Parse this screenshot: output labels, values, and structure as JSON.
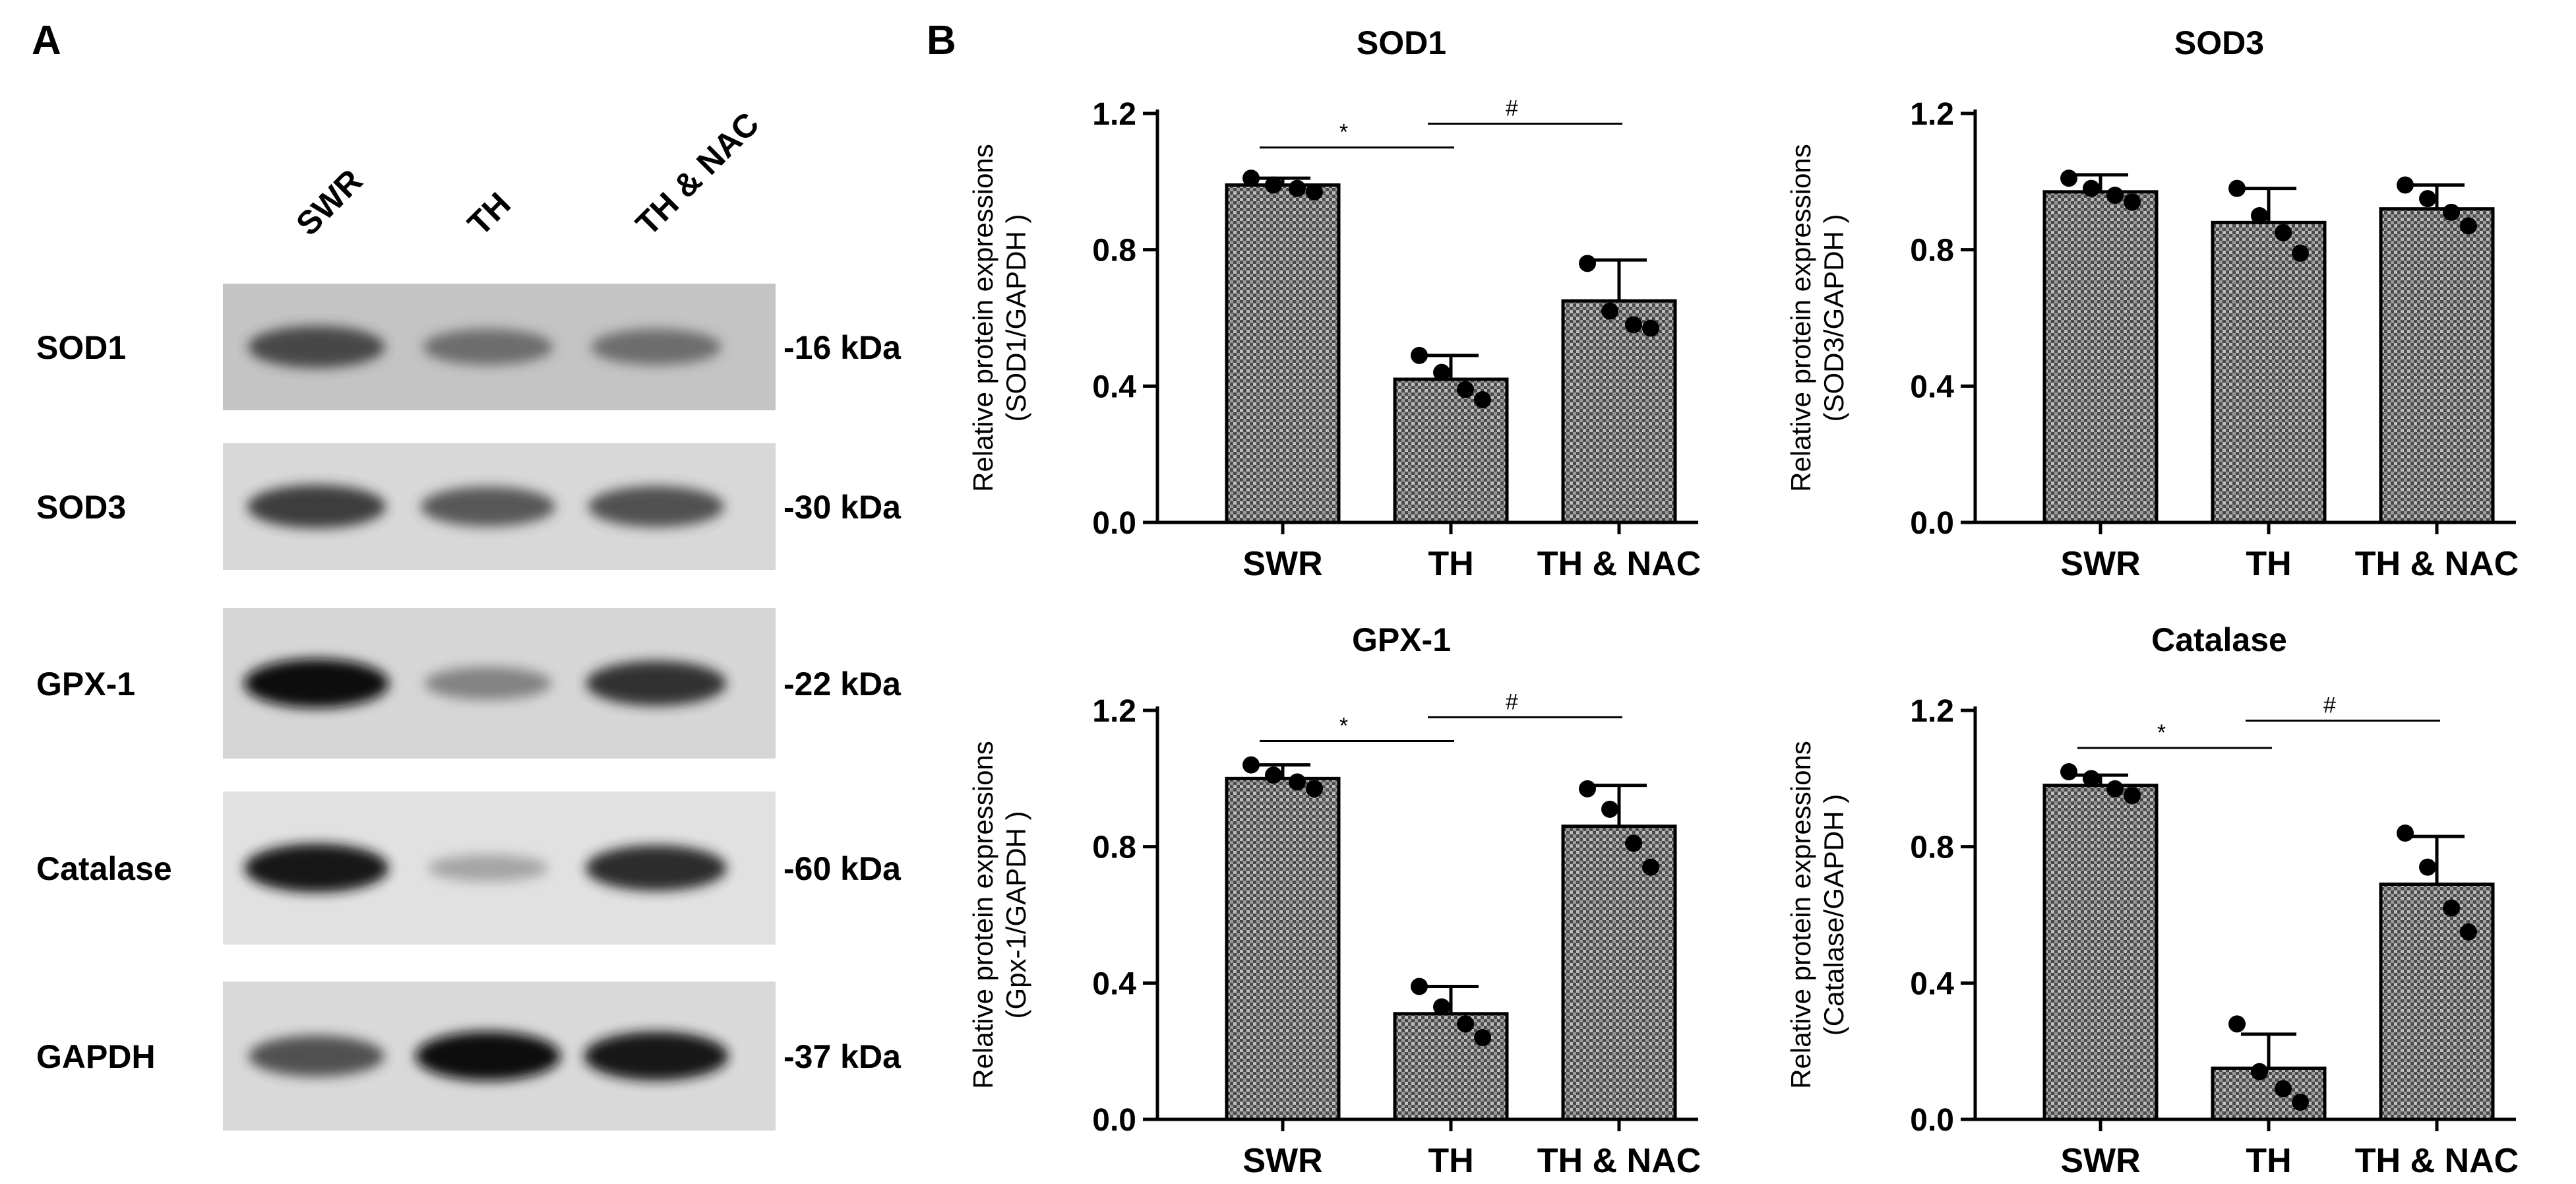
{
  "panels": {
    "a": "A",
    "b": "B"
  },
  "blot": {
    "lanes": [
      "SWR",
      "TH",
      "TH & NAC"
    ],
    "rows": [
      {
        "protein": "SOD1",
        "kda": "-16 kDa",
        "bg": "#c4c4c4",
        "intensity": [
          0.75,
          0.55,
          0.55
        ]
      },
      {
        "protein": "SOD3",
        "kda": "-30 kDa",
        "bg": "#d8d8d8",
        "intensity": [
          0.8,
          0.68,
          0.72
        ]
      },
      {
        "protein": "GPX-1",
        "kda": "-22 kDa",
        "bg": "#d6d6d6",
        "intensity": [
          1.0,
          0.45,
          0.85
        ]
      },
      {
        "protein": "Catalase",
        "kda": "-60 kDa",
        "bg": "#e1e1e1",
        "intensity": [
          0.98,
          0.25,
          0.88
        ]
      },
      {
        "protein": "GAPDH",
        "kda": "-37 kDa",
        "bg": "#d9d9d9",
        "intensity": [
          0.72,
          1.0,
          0.98
        ]
      }
    ]
  },
  "chart_data": [
    {
      "type": "bar",
      "title": "SOD1",
      "ylabel": [
        "Relative protein expressions",
        "(SOD1/GAPDH  )"
      ],
      "categories": [
        "SWR",
        "TH",
        "TH & NAC"
      ],
      "values": [
        0.99,
        0.42,
        0.65
      ],
      "errors": [
        0.02,
        0.07,
        0.12
      ],
      "points": [
        [
          1.01,
          0.99,
          0.98,
          0.97
        ],
        [
          0.49,
          0.44,
          0.39,
          0.36
        ],
        [
          0.76,
          0.62,
          0.58,
          0.57
        ]
      ],
      "yticks": [
        "0.0",
        "0.4",
        "0.8",
        "1.2"
      ],
      "ylim": [
        0,
        1.2
      ],
      "significance": [
        {
          "from": 0,
          "to": 1,
          "label": "*",
          "y": 1.1
        },
        {
          "from": 1,
          "to": 2,
          "label": "#",
          "y": 1.17
        }
      ]
    },
    {
      "type": "bar",
      "title": "SOD3",
      "ylabel": [
        "Relative protein expressions",
        "(SOD3/GAPDH )"
      ],
      "categories": [
        "SWR",
        "TH",
        "TH & NAC"
      ],
      "values": [
        0.97,
        0.88,
        0.92
      ],
      "errors": [
        0.05,
        0.1,
        0.07
      ],
      "points": [
        [
          1.01,
          0.98,
          0.96,
          0.94
        ],
        [
          0.98,
          0.9,
          0.85,
          0.79
        ],
        [
          0.99,
          0.95,
          0.91,
          0.87
        ]
      ],
      "yticks": [
        "0.0",
        "0.4",
        "0.8",
        "1.2"
      ],
      "ylim": [
        0,
        1.2
      ],
      "significance": []
    },
    {
      "type": "bar",
      "title": "GPX-1",
      "ylabel": [
        "Relative protein expressions",
        "(Gpx-1/GAPDH )"
      ],
      "categories": [
        "SWR",
        "TH",
        "TH & NAC"
      ],
      "values": [
        1.0,
        0.31,
        0.86
      ],
      "errors": [
        0.04,
        0.08,
        0.12
      ],
      "points": [
        [
          1.04,
          1.01,
          0.99,
          0.97
        ],
        [
          0.39,
          0.33,
          0.28,
          0.24
        ],
        [
          0.97,
          0.91,
          0.81,
          0.74
        ]
      ],
      "yticks": [
        "0.0",
        "0.4",
        "0.8",
        "1.2"
      ],
      "ylim": [
        0,
        1.2
      ],
      "significance": [
        {
          "from": 0,
          "to": 1,
          "label": "*",
          "y": 1.11
        },
        {
          "from": 1,
          "to": 2,
          "label": "#",
          "y": 1.18
        }
      ]
    },
    {
      "type": "bar",
      "title": "Catalase",
      "ylabel": [
        "Relative protein expressions",
        "(Catalase/GAPDH )"
      ],
      "categories": [
        "SWR",
        "TH",
        "TH & NAC"
      ],
      "values": [
        0.98,
        0.15,
        0.69
      ],
      "errors": [
        0.03,
        0.1,
        0.14
      ],
      "points": [
        [
          1.02,
          1.0,
          0.97,
          0.95
        ],
        [
          0.28,
          0.14,
          0.09,
          0.05
        ],
        [
          0.84,
          0.74,
          0.62,
          0.55
        ]
      ],
      "yticks": [
        "0.0",
        "0.4",
        "0.8",
        "1.2"
      ],
      "ylim": [
        0,
        1.2
      ],
      "significance": [
        {
          "from": 0,
          "to": 1,
          "label": "*",
          "y": 1.09
        },
        {
          "from": 1,
          "to": 2,
          "label": "#",
          "y": 1.17
        }
      ]
    }
  ]
}
